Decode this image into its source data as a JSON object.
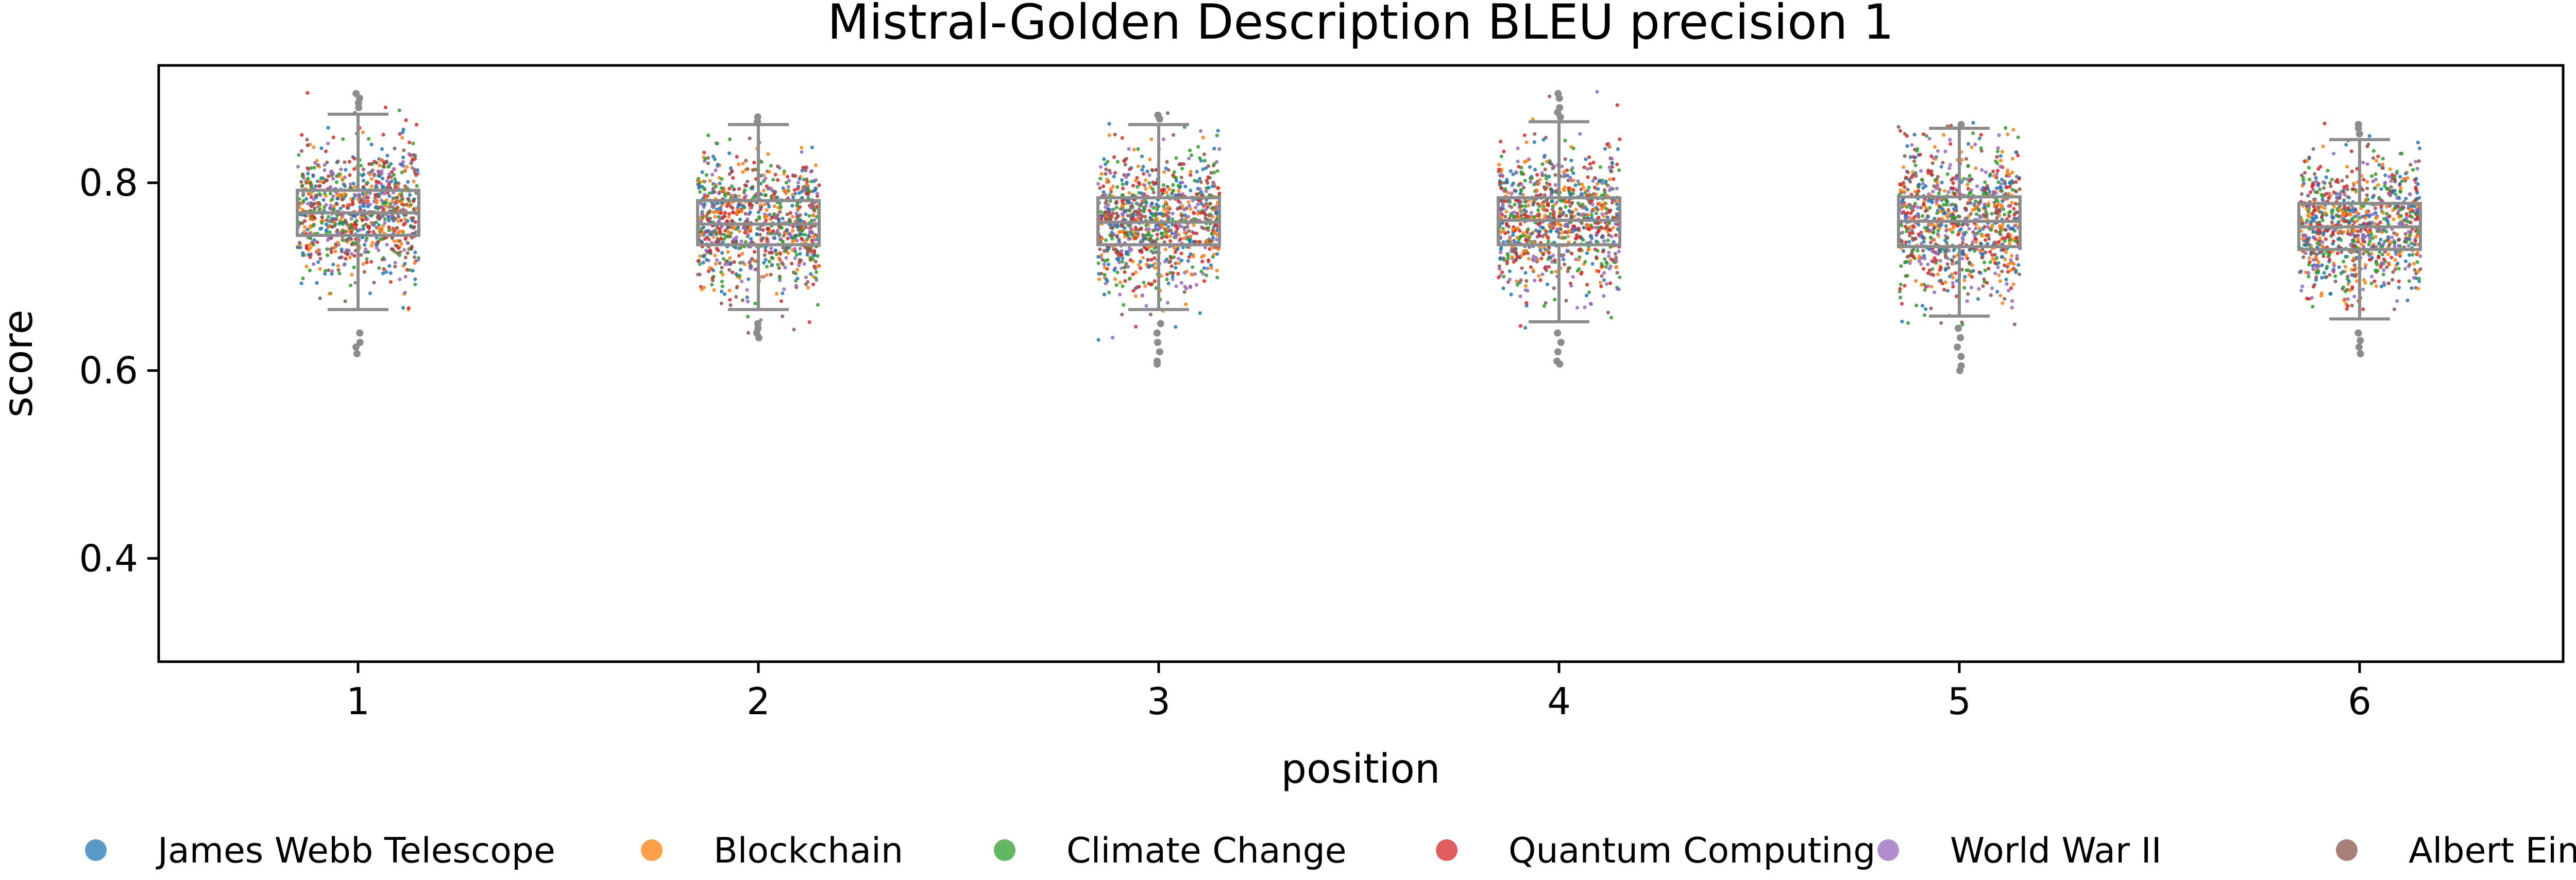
{
  "chart_data": {
    "type": "box-strip",
    "title": "Mistral-Golden Description BLEU precision 1",
    "xlabel": "position",
    "ylabel": "score",
    "categories": [
      "1",
      "2",
      "3",
      "4",
      "5",
      "6"
    ],
    "ylim": [
      0.29,
      0.925
    ],
    "yticks": [
      0.4,
      0.6,
      0.8
    ],
    "ytick_labels": [
      "0.4",
      "0.6",
      "0.8"
    ],
    "grid": false,
    "legend": {
      "placement": "bottom"
    },
    "series": [
      {
        "name": "James Webb Telescope",
        "color": "#1f77b4"
      },
      {
        "name": "Blockchain",
        "color": "#ff7f0e"
      },
      {
        "name": "Climate Change",
        "color": "#2ca02c"
      },
      {
        "name": "Quantum Computing",
        "color": "#d62728"
      },
      {
        "name": "World War II",
        "color": "#9467bd"
      },
      {
        "name": "Albert Einstein",
        "color": "#8c564b"
      }
    ],
    "boxes": [
      {
        "position": "1",
        "whisker_low": 0.665,
        "q1": 0.744,
        "median": 0.768,
        "q3": 0.792,
        "whisker_high": 0.873,
        "point_min": 0.615,
        "point_max": 0.897,
        "outliers": [
          0.64,
          0.63,
          0.625,
          0.618,
          0.88,
          0.885,
          0.89,
          0.895
        ]
      },
      {
        "position": "2",
        "whisker_low": 0.665,
        "q1": 0.734,
        "median": 0.756,
        "q3": 0.781,
        "whisker_high": 0.862,
        "point_min": 0.627,
        "point_max": 0.873,
        "outliers": [
          0.65,
          0.645,
          0.64,
          0.635,
          0.865,
          0.87
        ]
      },
      {
        "position": "3",
        "whisker_low": 0.665,
        "q1": 0.734,
        "median": 0.758,
        "q3": 0.784,
        "whisker_high": 0.862,
        "point_min": 0.605,
        "point_max": 0.875,
        "outliers": [
          0.65,
          0.64,
          0.63,
          0.62,
          0.61,
          0.607,
          0.868,
          0.872
        ]
      },
      {
        "position": "4",
        "whisker_low": 0.652,
        "q1": 0.734,
        "median": 0.76,
        "q3": 0.784,
        "whisker_high": 0.865,
        "point_min": 0.605,
        "point_max": 0.897,
        "outliers": [
          0.64,
          0.63,
          0.62,
          0.61,
          0.607,
          0.87,
          0.875,
          0.88,
          0.89,
          0.895
        ]
      },
      {
        "position": "5",
        "whisker_low": 0.658,
        "q1": 0.732,
        "median": 0.759,
        "q3": 0.785,
        "whisker_high": 0.858,
        "point_min": 0.6,
        "point_max": 0.865,
        "outliers": [
          0.645,
          0.635,
          0.625,
          0.615,
          0.605,
          0.6,
          0.862
        ]
      },
      {
        "position": "6",
        "whisker_low": 0.655,
        "q1": 0.729,
        "median": 0.753,
        "q3": 0.778,
        "whisker_high": 0.846,
        "point_min": 0.615,
        "point_max": 0.868,
        "outliers": [
          0.64,
          0.632,
          0.625,
          0.618,
          0.852,
          0.858,
          0.862
        ]
      }
    ]
  }
}
